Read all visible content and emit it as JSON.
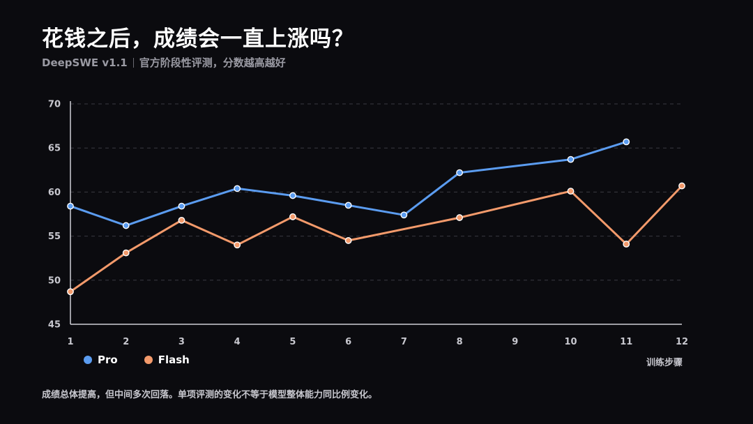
{
  "title": "花钱之后，成绩会一直上涨吗？",
  "subtitle": {
    "brand": "DeepSWE v1.1",
    "text": "官方阶段性评测，分数越高越好"
  },
  "footnote": "成绩总体提高，但中间多次回落。单项评测的变化不等于模型整体能力同比例变化。",
  "colors": {
    "background": "#0b0b0f",
    "pro": "#5b9cf0",
    "flash": "#f39a6b",
    "grid": "#3a3a42",
    "axis": "#cfcfd6",
    "tick_text": "#c8c8cf"
  },
  "chart_data": {
    "type": "line",
    "x": [
      1,
      2,
      3,
      4,
      5,
      6,
      7,
      8,
      9,
      10,
      11,
      12
    ],
    "xlabel": "训练步骤",
    "ylabel": "",
    "ylim": [
      45,
      70
    ],
    "yticks": [
      45,
      50,
      55,
      60,
      65,
      70
    ],
    "grid": true,
    "legend_position": "bottom-left",
    "series": [
      {
        "name": "Pro",
        "color": "#5b9cf0",
        "points": [
          [
            1,
            58.4
          ],
          [
            2,
            56.2
          ],
          [
            3,
            58.4
          ],
          [
            4,
            60.4
          ],
          [
            5,
            59.6
          ],
          [
            6,
            58.5
          ],
          [
            7,
            57.4
          ],
          [
            8,
            62.2
          ],
          [
            10,
            63.7
          ],
          [
            11,
            65.7
          ]
        ]
      },
      {
        "name": "Flash",
        "color": "#f39a6b",
        "points": [
          [
            1,
            48.7
          ],
          [
            2,
            53.1
          ],
          [
            3,
            56.8
          ],
          [
            4,
            54.0
          ],
          [
            5,
            57.2
          ],
          [
            6,
            54.5
          ],
          [
            8,
            57.1
          ],
          [
            10,
            60.1
          ],
          [
            11,
            54.1
          ],
          [
            12,
            60.7
          ]
        ]
      }
    ]
  }
}
